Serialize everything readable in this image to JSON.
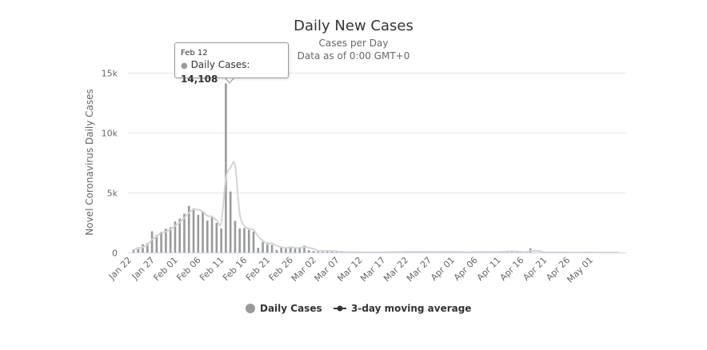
{
  "chart_data": {
    "type": "bar",
    "title": "Daily New Cases",
    "subtitle": [
      "Cases per Day",
      "Data as of 0:00 GMT+0"
    ],
    "ylabel": "Novel Coronavirus Daily Cases",
    "xlabel": "",
    "ylim": [
      0,
      15000
    ],
    "yticks": [
      "0",
      "5k",
      "10k",
      "15k"
    ],
    "yticks_values": [
      0,
      5000,
      10000,
      15000
    ],
    "grid": true,
    "legend_position": "bottom",
    "start_date": "Jan 22",
    "xtick_labels": [
      "Jan 22",
      "Jan 27",
      "Feb 01",
      "Feb 06",
      "Feb 11",
      "Feb 16",
      "Feb 21",
      "Feb 26",
      "Mar 02",
      "Mar 07",
      "Mar 12",
      "Mar 17",
      "Mar 22",
      "Mar 27",
      "Apr 01",
      "Apr 06",
      "Apr 11",
      "Apr 16",
      "Apr 21",
      "Apr 26",
      "May 01"
    ],
    "series": [
      {
        "name": "Daily Cases",
        "type": "column",
        "color": "#999999",
        "values": [
          222,
          444,
          688,
          777,
          1771,
          1459,
          1737,
          1981,
          2099,
          2589,
          2825,
          3235,
          3884,
          3694,
          3143,
          3385,
          2652,
          2973,
          2467,
          2015,
          14108,
          5090,
          2641,
          2008,
          2048,
          1886,
          1749,
          391,
          889,
          823,
          648,
          214,
          508,
          406,
          433,
          327,
          427,
          573,
          202,
          125,
          119,
          139,
          143,
          99,
          44,
          40,
          19,
          24,
          15,
          8,
          11,
          20,
          16,
          21,
          13,
          39,
          41,
          46,
          39,
          78,
          47,
          67,
          55,
          54,
          45,
          31,
          83,
          35,
          48,
          79,
          36,
          35,
          31,
          26,
          99,
          32,
          30,
          39,
          63,
          46,
          99,
          108,
          89,
          46,
          26,
          26,
          352,
          16,
          12,
          11,
          10,
          11,
          6,
          3,
          6,
          2,
          1,
          12,
          4,
          3,
          1,
          2,
          3,
          1,
          1,
          14
        ]
      },
      {
        "name": "3-day moving average",
        "type": "spline",
        "color": "#d4d4d4",
        "marker_color": "#333333"
      }
    ],
    "tooltip": {
      "date": "Feb 12",
      "series": "Daily Cases",
      "label": "Daily Cases:",
      "value": "14,108"
    }
  }
}
